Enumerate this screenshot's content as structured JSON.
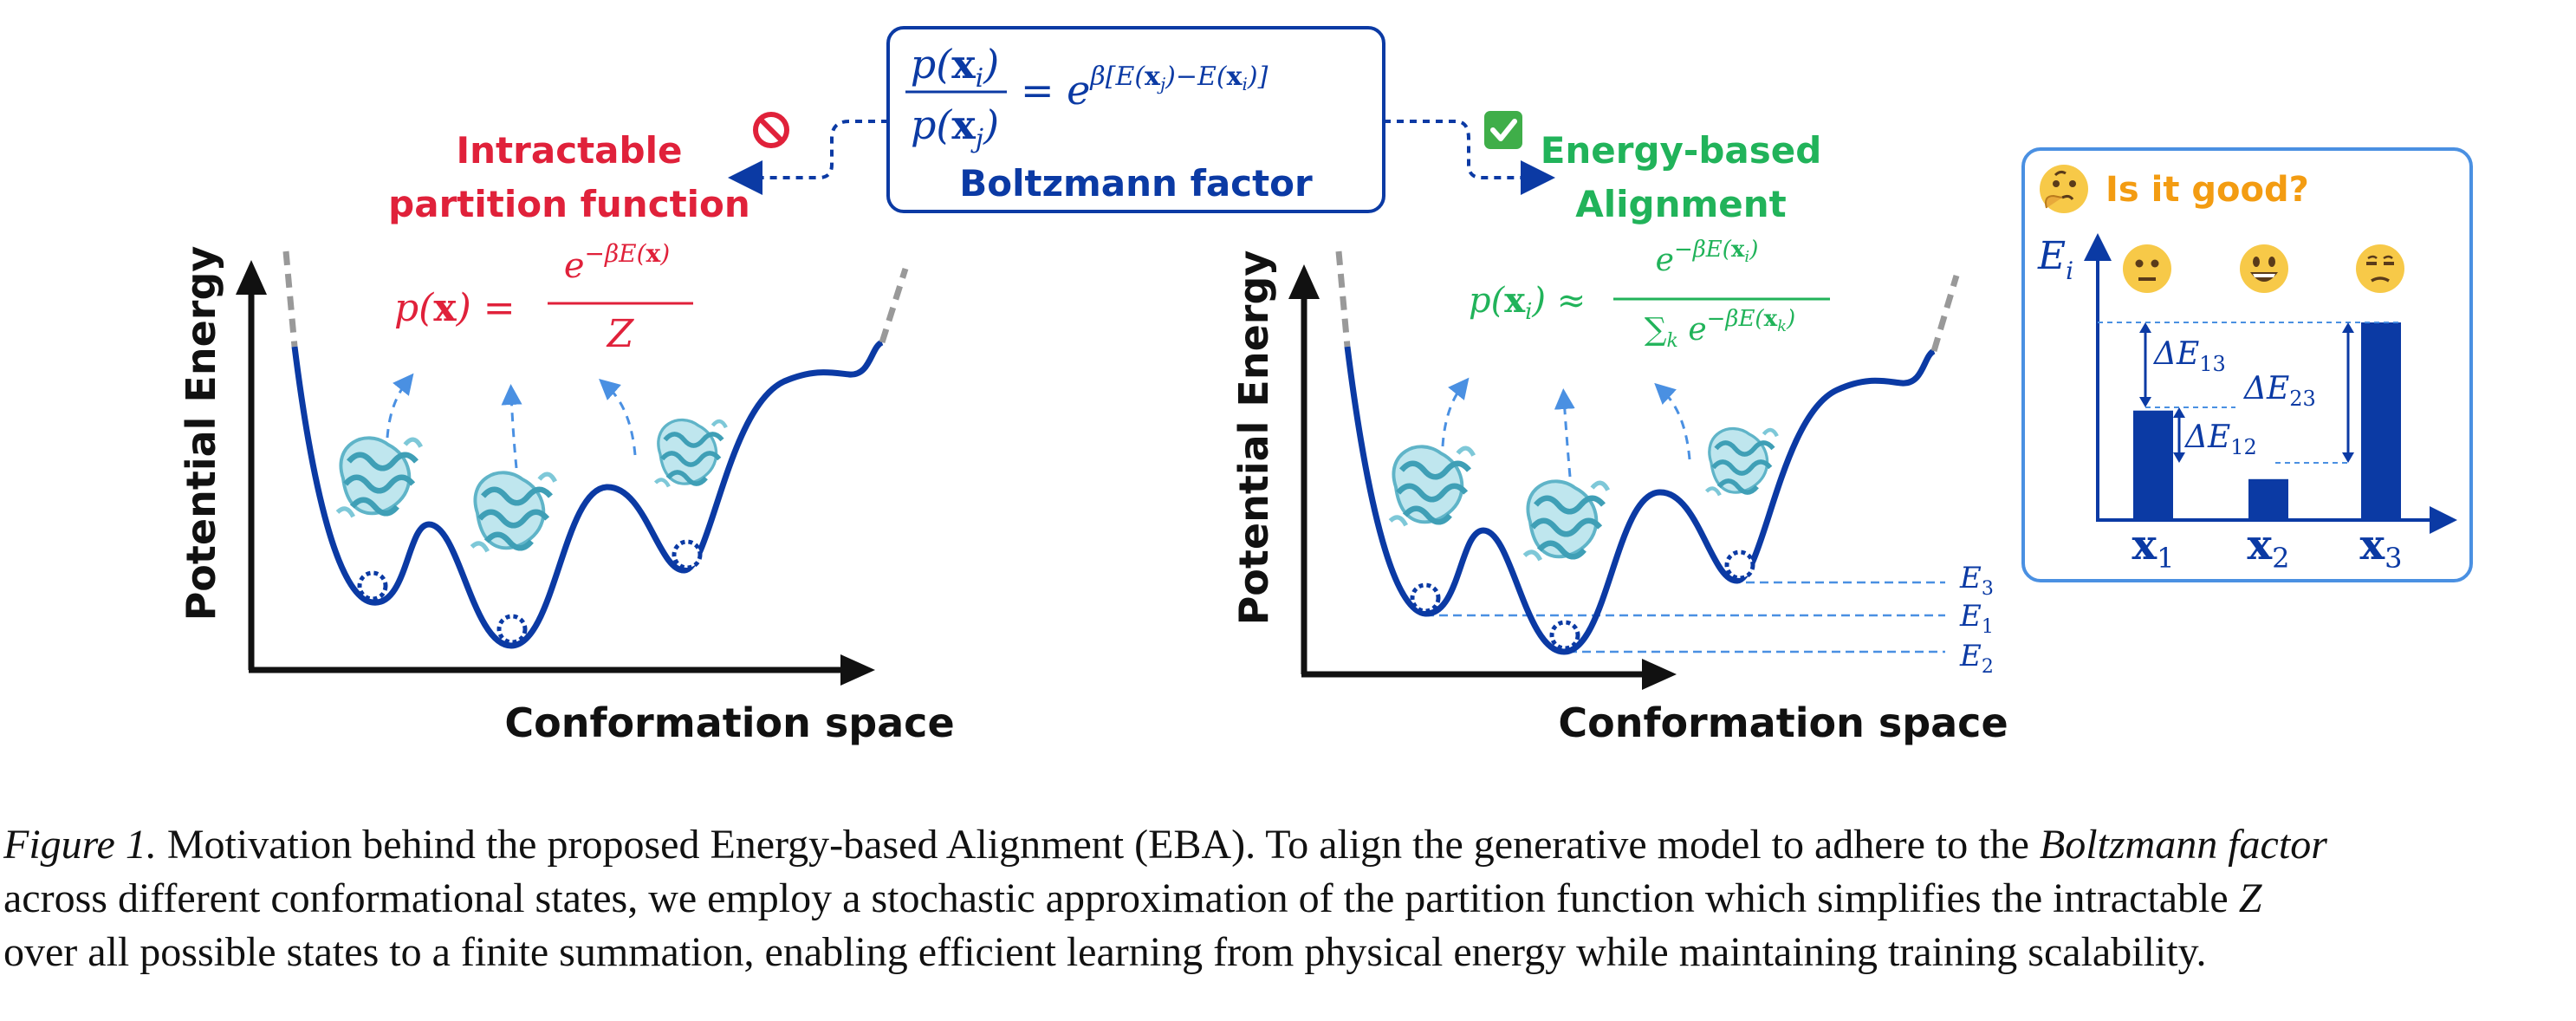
{
  "boltzmann_box": {
    "ratio_num": "p(x_i)",
    "ratio_den": "p(x_j)",
    "ratio_rhs": "= e^{β[E(x_j)−E(x_i)]}",
    "title": "Boltzmann factor"
  },
  "left_panel": {
    "heading_line1": "Intractable",
    "heading_line2": "partition function",
    "formula_lhs": "p(x) =",
    "formula_num": "e^{−βE(x)}",
    "formula_den": "Z",
    "y_axis_label": "Potential Energy",
    "x_axis_label": "Conformation space",
    "status_icon": "prohibited-icon"
  },
  "middle_panel": {
    "heading_line1": "Energy-based",
    "heading_line2": "Alignment",
    "formula_lhs": "p(x_i) ≈",
    "formula_num": "e^{−βE(x_i)}",
    "formula_den": "∑_k e^{−βE(x_k)}",
    "y_axis_label": "Potential Energy",
    "x_axis_label": "Conformation space",
    "energy_levels": [
      "E3",
      "E1",
      "E2"
    ],
    "status_icon": "check-mark-icon"
  },
  "right_panel": {
    "title": "Is it good?",
    "title_icon": "thinking-face-icon",
    "y_axis_label": "Ei",
    "faces": [
      "neutral-face-icon",
      "grinning-face-icon",
      "unamused-face-icon"
    ],
    "delta_labels": [
      "ΔE13",
      "ΔE12",
      "ΔE23"
    ],
    "chart_data": {
      "type": "bar",
      "categories": [
        "x1",
        "x2",
        "x3"
      ],
      "values": [
        0.55,
        0.2,
        1.0
      ],
      "ylabel": "Ei",
      "note": ""
    }
  },
  "colors": {
    "navy": "#0b3aa4",
    "red": "#e0213a",
    "green": "#21b35a",
    "orange": "#f39c12",
    "light_blue": "#4a90e2",
    "protein": "#7ec8d8"
  },
  "caption": {
    "label": "Figure 1.",
    "line1_a": "Motivation behind the proposed Energy-based Alignment (EBA). To align the generative model to adhere to the",
    "line1_b": "Boltzmann factor",
    "line2_a": "across different conformational states, we employ a stochastic approximation of the partition function which simplifies the intractable",
    "line2_b": "Z",
    "line3": "over all possible states to a finite summation, enabling efficient learning from physical energy while maintaining training scalability."
  }
}
